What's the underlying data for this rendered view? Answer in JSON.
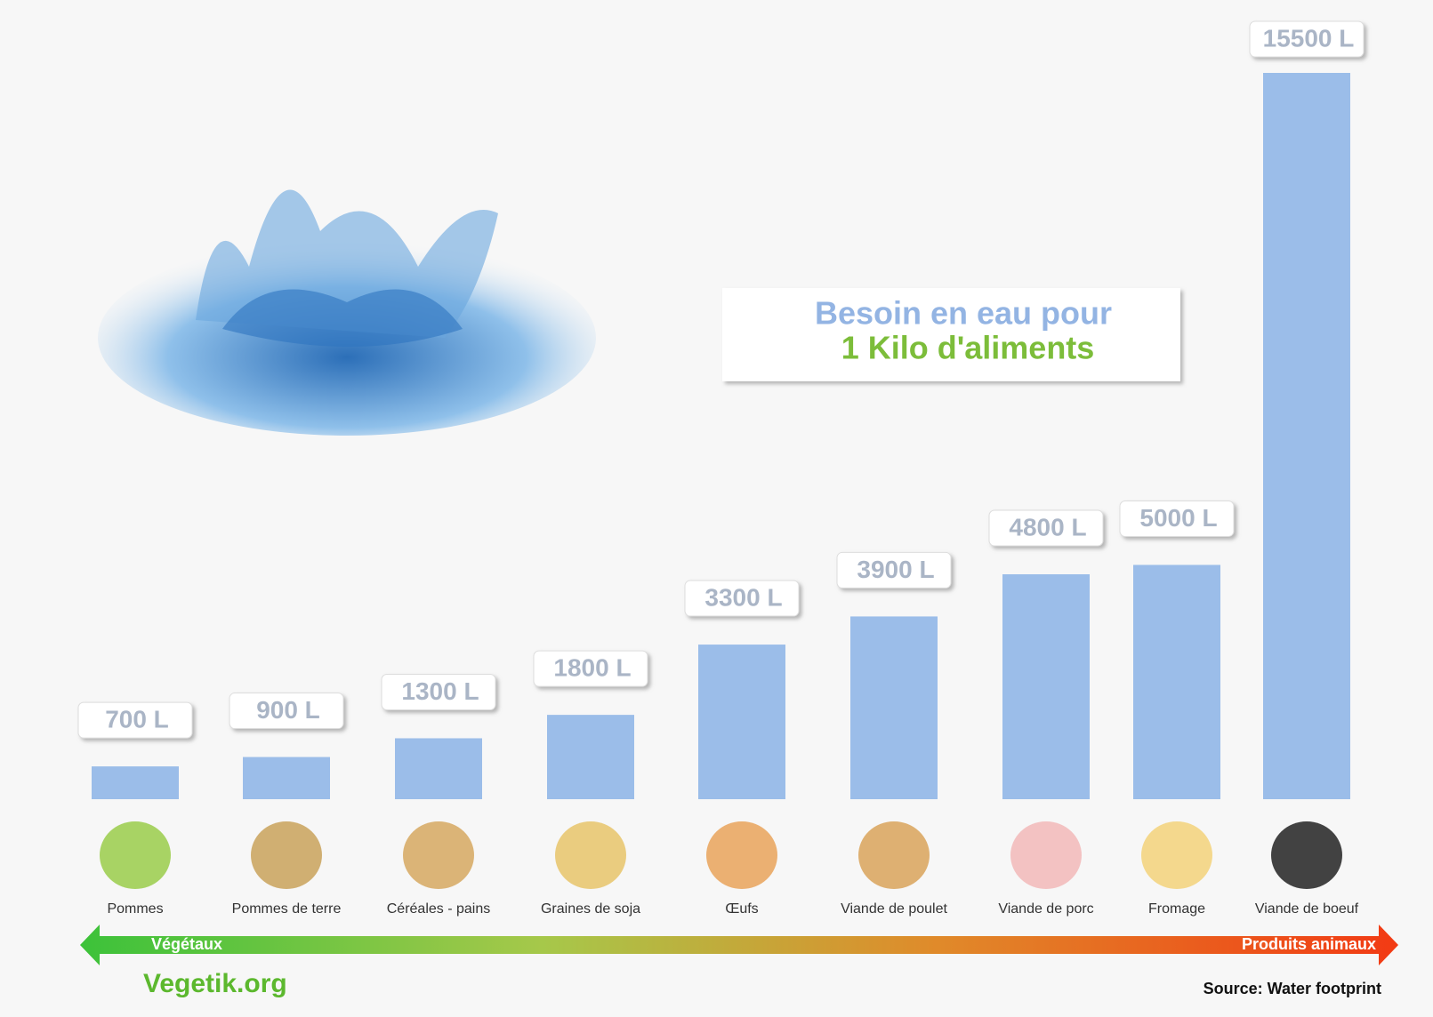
{
  "chart_data": {
    "type": "bar",
    "title": "Besoin en eau pour",
    "subtitle": "1 Kilo d'aliments",
    "categories": [
      "Pommes",
      "Pommes de terre",
      "Céréales - pains",
      "Graines de soja",
      "Œufs",
      "Viande de poulet",
      "Viande de porc",
      "Fromage",
      "Viande de boeuf"
    ],
    "values": [
      700,
      900,
      1300,
      1800,
      3300,
      3900,
      4800,
      5000,
      15500
    ],
    "value_labels": [
      "700 L",
      "900 L",
      "1300 L",
      "1800 L",
      "3300 L",
      "3900 L",
      "4800 L",
      "5000 L",
      "15500 L"
    ],
    "color": "#9bbde9",
    "scale_left_label": "Végétaux",
    "scale_right_label": "Produits animaux",
    "brand": "Vegetik.org",
    "source": "Source: Water footprint"
  }
}
